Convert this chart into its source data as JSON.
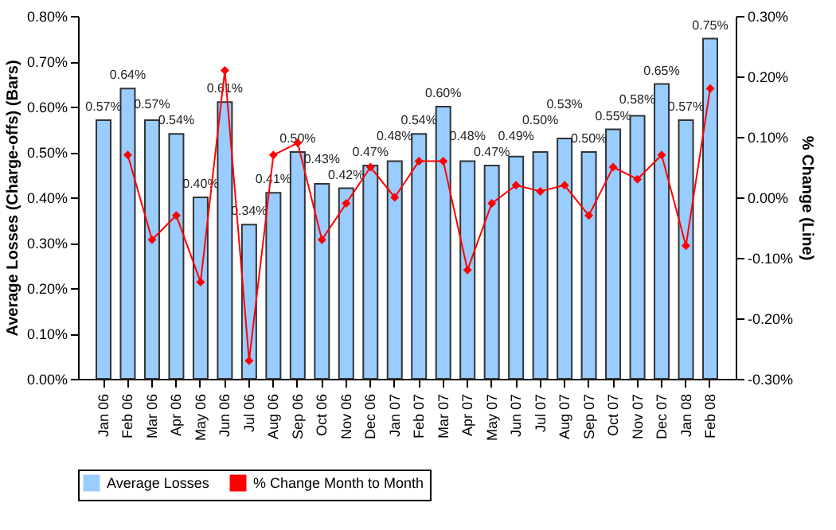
{
  "chart_data": {
    "type": "bar",
    "ylabel": "Average Losses (Charge-offs) (Bars)",
    "y2label": "% Change (Line)",
    "categories": [
      "Jan 06",
      "Feb 06",
      "Mar 06",
      "Apr 06",
      "May 06",
      "Jun 06",
      "Jul 06",
      "Aug 06",
      "Sep 06",
      "Oct 06",
      "Nov 06",
      "Dec 06",
      "Jan 07",
      "Feb 07",
      "Mar 07",
      "Apr 07",
      "May 07",
      "Jun 07",
      "Jul 07",
      "Aug 07",
      "Sep 07",
      "Oct 07",
      "Nov 07",
      "Dec 07",
      "Jan 08",
      "Feb 08"
    ],
    "series": [
      {
        "name": "Average Losses",
        "color": "#99ccff",
        "values": [
          0.57,
          0.64,
          0.57,
          0.54,
          0.4,
          0.61,
          0.34,
          0.41,
          0.5,
          0.43,
          0.42,
          0.47,
          0.48,
          0.54,
          0.6,
          0.48,
          0.47,
          0.49,
          0.5,
          0.53,
          0.5,
          0.55,
          0.58,
          0.65,
          0.57,
          0.75
        ],
        "value_labels": [
          "0.57%",
          "0.64%",
          "0.57%",
          "0.54%",
          "0.40%",
          "0.61%",
          "0.34%",
          "0.41%",
          "0.50%",
          "0.43%",
          "0.42%",
          "0.47%",
          "0.48%",
          "0.54%",
          "0.60%",
          "0.48%",
          "0.47%",
          "0.49%",
          "0.50%",
          "0.53%",
          "0.50%",
          "0.55%",
          "0.58%",
          "0.65%",
          "0.57%",
          "0.75%"
        ]
      },
      {
        "name": "% Change Month to Month",
        "type": "line",
        "axis": "y2",
        "color": "#ff0000",
        "marker": "diamond",
        "values": [
          null,
          0.07,
          -0.07,
          -0.03,
          -0.14,
          0.21,
          -0.27,
          0.07,
          0.09,
          -0.07,
          -0.01,
          0.05,
          0.0,
          0.06,
          0.06,
          -0.12,
          -0.01,
          0.02,
          0.01,
          0.02,
          -0.03,
          0.05,
          0.03,
          0.07,
          -0.08,
          0.18
        ]
      }
    ],
    "ylim": [
      0,
      0.8
    ],
    "yticks": [
      {
        "value": 0,
        "label": "0.00%"
      },
      {
        "value": 0.1,
        "label": "0.10%"
      },
      {
        "value": 0.2,
        "label": "0.20%"
      },
      {
        "value": 0.3,
        "label": "0.30%"
      },
      {
        "value": 0.4,
        "label": "0.40%"
      },
      {
        "value": 0.5,
        "label": "0.50%"
      },
      {
        "value": 0.6,
        "label": "0.60%"
      },
      {
        "value": 0.7,
        "label": "0.70%"
      },
      {
        "value": 0.8,
        "label": "0.80%"
      }
    ],
    "y2lim": [
      -0.3,
      0.3
    ],
    "y2ticks": [
      {
        "value": -0.3,
        "label": "-0.30%"
      },
      {
        "value": -0.2,
        "label": "-0.20%"
      },
      {
        "value": -0.1,
        "label": "-0.10%"
      },
      {
        "value": 0,
        "label": "0.00%"
      },
      {
        "value": 0.1,
        "label": "0.10%"
      },
      {
        "value": 0.2,
        "label": "0.20%"
      },
      {
        "value": 0.3,
        "label": "0.30%"
      }
    ],
    "grid": false,
    "legend": "bottom"
  }
}
